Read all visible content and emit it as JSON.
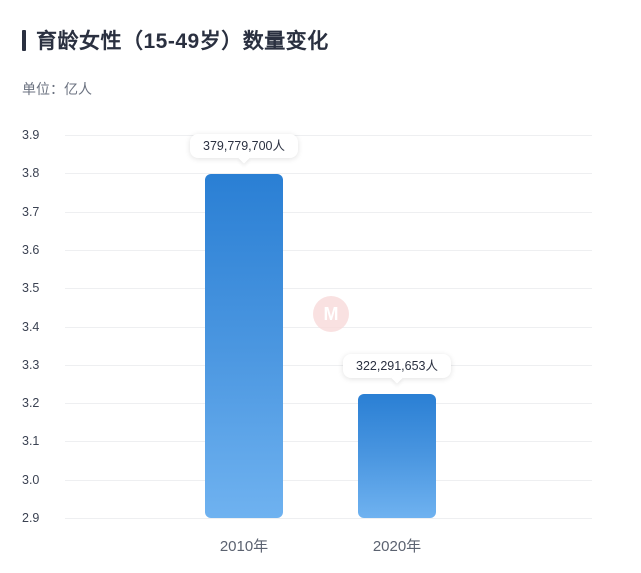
{
  "header": {
    "title": "育龄女性（15-49岁）数量变化",
    "unit": "单位：亿人"
  },
  "colors": {
    "bar_top": "#2a7fd4",
    "bar_bottom": "#6fb2f0",
    "title": "#2a3040",
    "grid": "#eeeff1"
  },
  "watermark": {
    "icon": "logo-watermark-icon",
    "glyph": "M"
  },
  "chart_data": {
    "type": "bar",
    "title": "育龄女性（15-49岁）数量变化",
    "subtitle": "单位：亿人",
    "xlabel": "",
    "ylabel": "亿人",
    "categories": [
      "2010年",
      "2020年"
    ],
    "values": [
      3.797797,
      3.22291653
    ],
    "data_labels": [
      "379,779,700人",
      "322,291,653人"
    ],
    "yticks": [
      "3.9",
      "3.8",
      "3.7",
      "3.6",
      "3.5",
      "3.4",
      "3.3",
      "3.2",
      "3.1",
      "3.0",
      "2.9"
    ],
    "ylim": [
      2.9,
      3.9
    ],
    "grid": true,
    "legend": "none"
  }
}
